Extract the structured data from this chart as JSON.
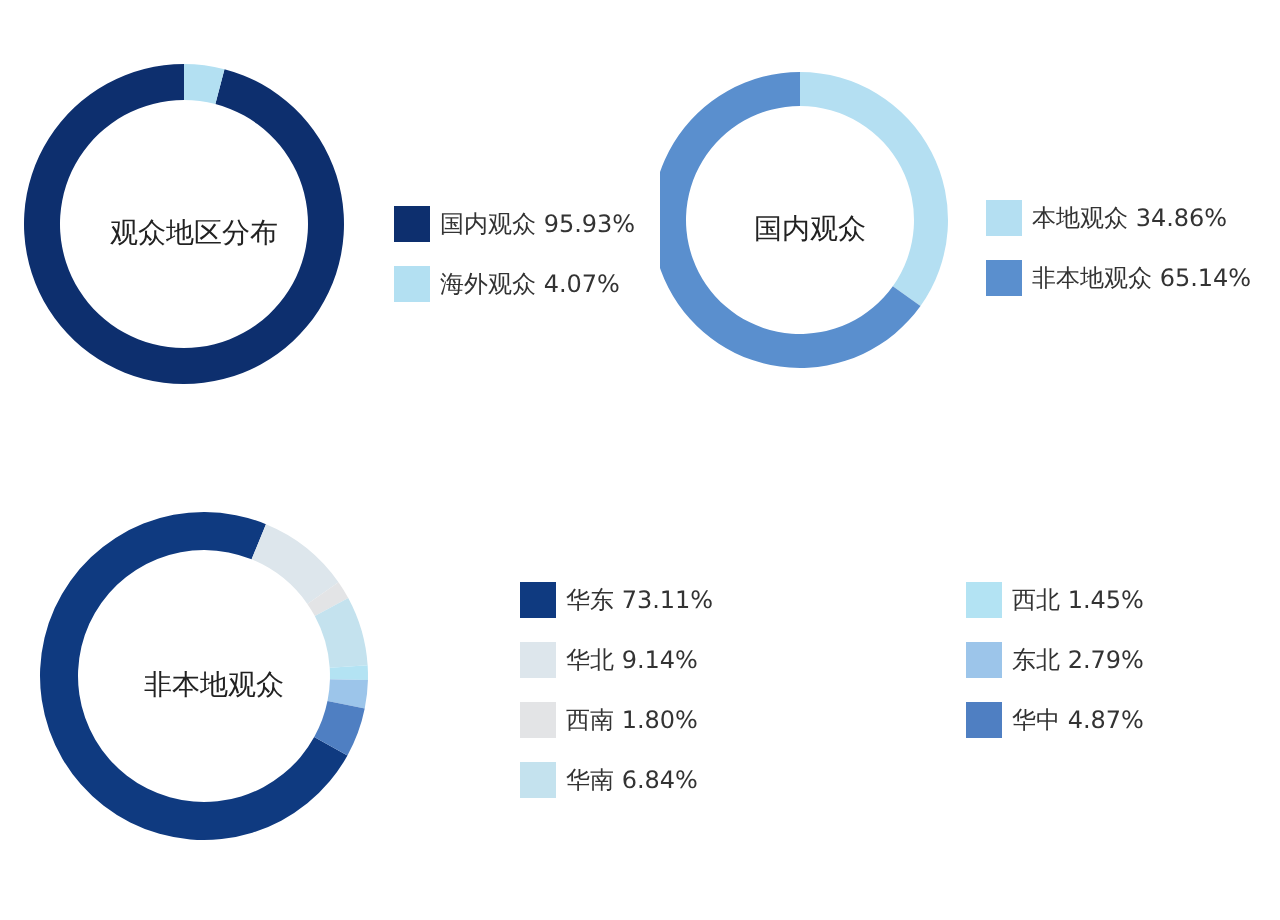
{
  "chart_data": [
    {
      "type": "donut",
      "title": "观众地区分布",
      "categories": [
        "国内观众",
        "海外观众"
      ],
      "values": [
        95.93,
        4.07
      ],
      "value_labels": [
        "95.93%",
        "4.07%"
      ],
      "colors": [
        "#0d2f6e",
        "#b3e0f2"
      ],
      "legend": "right"
    },
    {
      "type": "donut",
      "title": "国内观众",
      "categories": [
        "本地观众",
        "非本地观众"
      ],
      "values": [
        34.86,
        65.14
      ],
      "value_labels": [
        "34.86%",
        "65.14%"
      ],
      "colors": [
        "#b4dff2",
        "#5a8fce"
      ],
      "legend": "right"
    },
    {
      "type": "donut",
      "title": "非本地观众",
      "categories": [
        "华东",
        "华北",
        "西南",
        "华南",
        "西北",
        "东北",
        "华中"
      ],
      "values": [
        73.11,
        9.14,
        1.8,
        6.84,
        1.45,
        2.79,
        4.87
      ],
      "value_labels": [
        "73.11%",
        "9.14%",
        "1.80%",
        "6.84%",
        "1.45%",
        "2.79%",
        "4.87%"
      ],
      "colors": [
        "#0f3a80",
        "#dde6ec",
        "#e3e4e6",
        "#c4e2ee",
        "#b3e3f3",
        "#9cc5ea",
        "#4f7fc2"
      ],
      "legend": "right"
    }
  ]
}
